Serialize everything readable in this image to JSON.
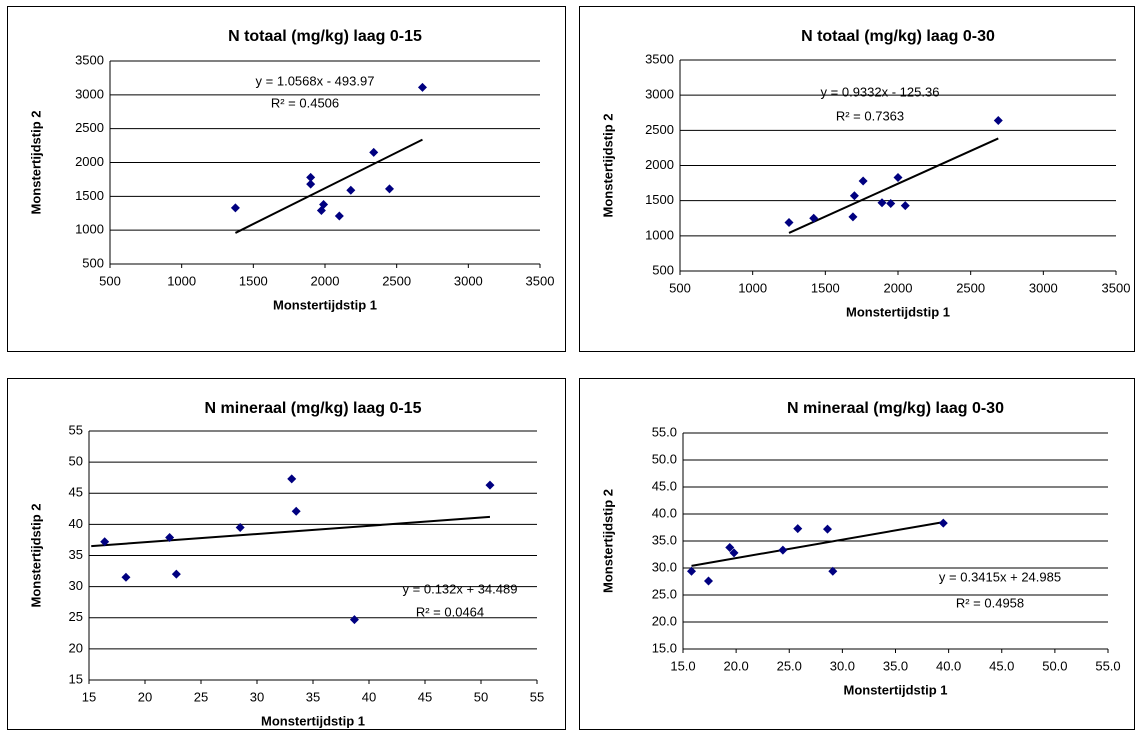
{
  "chart_data": [
    {
      "type": "scatter",
      "title": "N totaal (mg/kg) laag 0-15",
      "x_label": "Monstertijdstip 1",
      "y_label": "Monstertijdstip 2",
      "color": "#000080",
      "x": [
        1375,
        1900,
        1900,
        1975,
        1990,
        2100,
        2180,
        2340,
        2450,
        2680
      ],
      "values": [
        1330,
        1780,
        1680,
        1290,
        1380,
        1210,
        1590,
        2150,
        1610,
        3110
      ],
      "trendline": {
        "x": [
          1375,
          2680
        ],
        "values": [
          959,
          2338
        ]
      },
      "equation": "y = 1.0568x - 493.97",
      "r_squared": "R² = 0.4506",
      "xlim": [
        500,
        3500
      ],
      "xticks": [
        500,
        1000,
        1500,
        2000,
        2500,
        3000,
        3500
      ],
      "ylim": [
        500,
        3500
      ],
      "yticks": [
        500,
        1000,
        1500,
        2000,
        2500,
        3000,
        3500
      ],
      "grid": true
    },
    {
      "type": "scatter",
      "title": "N totaal (mg/kg) laag 0-30",
      "x_label": "Monstertijdstip 1",
      "y_label": "Monstertijdstip 2",
      "color": "#000080",
      "x": [
        1250,
        1420,
        1690,
        1700,
        1760,
        1890,
        1950,
        2000,
        2050,
        2690
      ],
      "values": [
        1190,
        1250,
        1270,
        1570,
        1780,
        1470,
        1460,
        1830,
        1430,
        2640
      ],
      "trendline": {
        "x": [
          1250,
          2690
        ],
        "values": [
          1041,
          2385
        ]
      },
      "equation": "y = 0.9332x - 125.36",
      "r_squared": "R² = 0.7363",
      "xlim": [
        500,
        3500
      ],
      "xticks": [
        500,
        1000,
        1500,
        2000,
        2500,
        3000,
        3500
      ],
      "ylim": [
        500,
        3500
      ],
      "yticks": [
        500,
        1000,
        1500,
        2000,
        2500,
        3000,
        3500
      ],
      "grid": true
    },
    {
      "type": "scatter",
      "title": "N mineraal (mg/kg) laag 0-15",
      "x_label": "Monstertijdstip 1",
      "y_label": "Monstertijdstip 2",
      "color": "#000080",
      "x": [
        16.4,
        18.3,
        22.2,
        22.8,
        28.5,
        33.1,
        33.5,
        38.7,
        50.8
      ],
      "values": [
        37.2,
        31.5,
        37.9,
        32,
        39.5,
        47.3,
        42.1,
        24.7,
        46.3
      ],
      "trendline": {
        "x": [
          15.2,
          50.8
        ],
        "values": [
          36.5,
          41.2
        ]
      },
      "equation": "y = 0.132x + 34.489",
      "r_squared": "R² = 0.0464",
      "xlim": [
        15,
        55
      ],
      "xticks": [
        15,
        20,
        25,
        30,
        35,
        40,
        45,
        50,
        55
      ],
      "ylim": [
        15,
        55
      ],
      "yticks": [
        15,
        20,
        25,
        30,
        35,
        40,
        45,
        50,
        55
      ],
      "grid": true
    },
    {
      "type": "scatter",
      "title": "N mineraal (mg/kg) laag 0-30",
      "x_label": "Monstertijdstip 1",
      "y_label": "Monstertijdstip 2",
      "color": "#000080",
      "x": [
        15.8,
        17.4,
        19.4,
        19.8,
        24.4,
        25.8,
        28.6,
        29.1,
        39.5
      ],
      "values": [
        29.4,
        27.6,
        33.8,
        32.8,
        33.3,
        37.3,
        37.2,
        29.4,
        38.3
      ],
      "trendline": {
        "x": [
          15.8,
          39.5
        ],
        "values": [
          30.4,
          38.5
        ]
      },
      "equation": "y = 0.3415x + 24.985",
      "r_squared": "R² = 0.4958",
      "xlim": [
        15,
        55
      ],
      "xticks": [
        {
          "value": 15,
          "label": "15.0"
        },
        {
          "value": 20,
          "label": "20.0"
        },
        {
          "value": 25,
          "label": "25.0"
        },
        {
          "value": 30,
          "label": "30.0"
        },
        {
          "value": 35,
          "label": "35.0"
        },
        {
          "value": 40,
          "label": "40.0"
        },
        {
          "value": 45,
          "label": "45.0"
        },
        {
          "value": 50,
          "label": "50.0"
        },
        {
          "value": 55,
          "label": "55.0"
        }
      ],
      "ylim": [
        15,
        55
      ],
      "yticks": [
        {
          "value": 15,
          "label": "15.0"
        },
        {
          "value": 20,
          "label": "20.0"
        },
        {
          "value": 25,
          "label": "25.0"
        },
        {
          "value": 30,
          "label": "30.0"
        },
        {
          "value": 35,
          "label": "35.0"
        },
        {
          "value": 40,
          "label": "40.0"
        },
        {
          "value": 45,
          "label": "45.0"
        },
        {
          "value": 50,
          "label": "50.0"
        },
        {
          "value": 55,
          "label": "55.0"
        }
      ],
      "grid": true
    }
  ]
}
